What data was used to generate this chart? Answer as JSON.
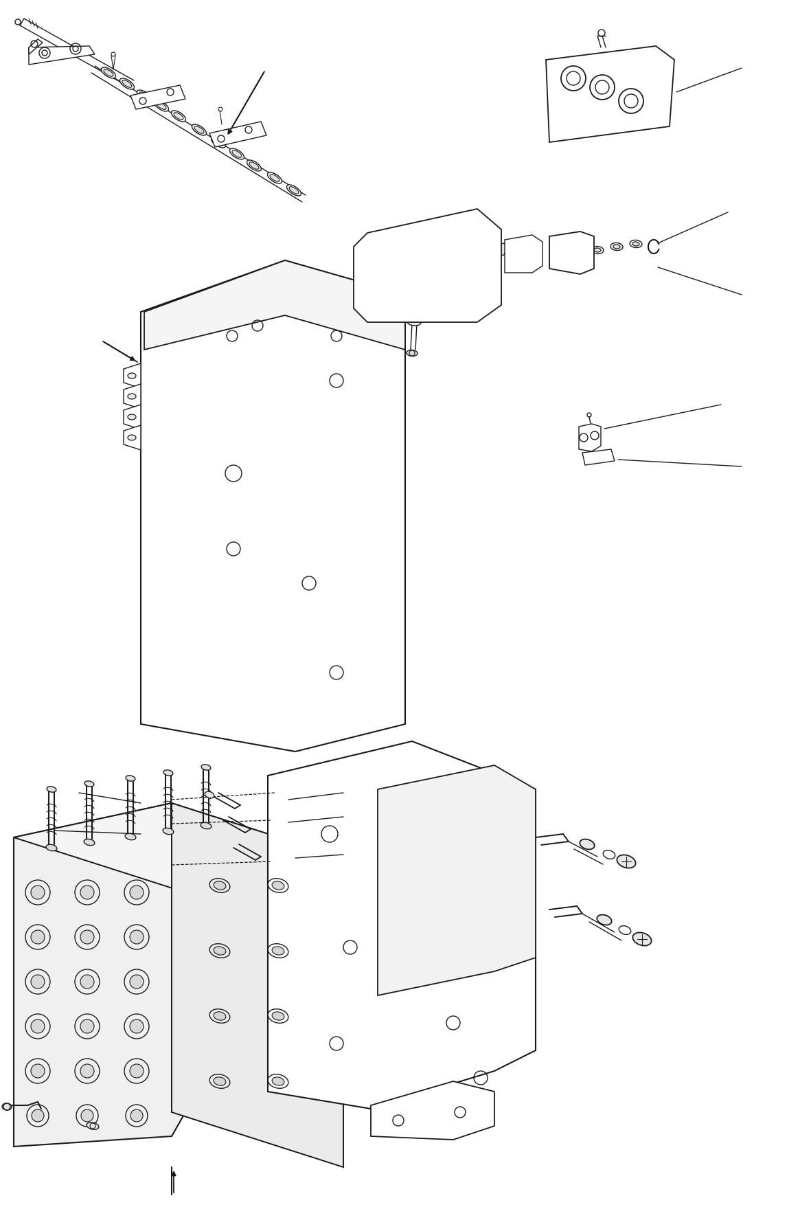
{
  "bg_color": "#ffffff",
  "lc": "#1a1a1a",
  "lw": 1.0,
  "figsize": [
    11.81,
    17.58
  ],
  "dpi": 100
}
